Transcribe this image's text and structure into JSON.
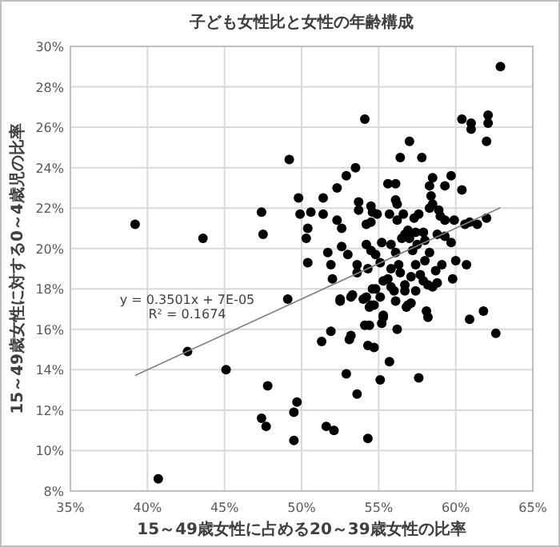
{
  "chart_data": {
    "type": "scatter",
    "title": "子ども女性比と女性の年齢構成",
    "xlabel": "15～49歳女性に占める20～39歳女性の比率",
    "ylabel": "15～49歳女性に対する0～4歳児の比率",
    "xlim": [
      35,
      65
    ],
    "ylim": [
      8,
      30
    ],
    "xticks": [
      {
        "value": 35,
        "label": "35%"
      },
      {
        "value": 40,
        "label": "40%"
      },
      {
        "value": 45,
        "label": "45%"
      },
      {
        "value": 50,
        "label": "50%"
      },
      {
        "value": 55,
        "label": "55%"
      },
      {
        "value": 60,
        "label": "60%"
      },
      {
        "value": 65,
        "label": "65%"
      }
    ],
    "yticks": [
      {
        "value": 8,
        "label": "8%"
      },
      {
        "value": 10,
        "label": "10%"
      },
      {
        "value": 12,
        "label": "12%"
      },
      {
        "value": 14,
        "label": "14%"
      },
      {
        "value": 16,
        "label": "16%"
      },
      {
        "value": 18,
        "label": "18%"
      },
      {
        "value": 20,
        "label": "20%"
      },
      {
        "value": 22,
        "label": "22%"
      },
      {
        "value": 24,
        "label": "24%"
      },
      {
        "value": 26,
        "label": "26%"
      },
      {
        "value": 28,
        "label": "28%"
      },
      {
        "value": 30,
        "label": "30%"
      }
    ],
    "grid": true,
    "series": [
      {
        "marker": "circle",
        "color": "#000000",
        "x": [
          49.2,
          39.2,
          43.6,
          47.4,
          47.5,
          49.8,
          49.9,
          50.6,
          50.4,
          50.3,
          50.4,
          49.1,
          42.6,
          45.1,
          47.8,
          49.7,
          49.5,
          47.4,
          47.7,
          49.5,
          40.7,
          51.3,
          52.5,
          53.2,
          54.0,
          54.5,
          51.9,
          53.2,
          53.1,
          54.1,
          54.4,
          54.3,
          54.7,
          55.2,
          55.3,
          56.2,
          55.7,
          52.9,
          55.1,
          57.6,
          53.6,
          51.6,
          52.1,
          54.3,
          60.9,
          61.8,
          62.6,
          58.1,
          58.2,
          56.9,
          57.1,
          62.9,
          54.1,
          60.4,
          61.0,
          61.0,
          62.1,
          62.1,
          62.0,
          57.0,
          56.4,
          57.8,
          53.5,
          52.9,
          52.3,
          51.4,
          55.6,
          56.1,
          53.7,
          53.7,
          54.5,
          56.1,
          56.2,
          58.3,
          58.5,
          58.4,
          59.3,
          59.7,
          60.4,
          51.4,
          52.3,
          54.6,
          54.9,
          54.2,
          54.5,
          55.7,
          56.2,
          56.6,
          57.3,
          57.6,
          58.3,
          58.5,
          58.9,
          59.0,
          59.3,
          59.9,
          60.6,
          60.9,
          61.4,
          62.0,
          52.6,
          51.7,
          51.9,
          52.0,
          52.6,
          53.0,
          53.6,
          53.6,
          54.3,
          54.2,
          54.5,
          55.2,
          54.8,
          55.1,
          55.8,
          56.1,
          56.3,
          56.5,
          56.7,
          56.9,
          57.0,
          57.2,
          57.5,
          57.4,
          57.9,
          58.0,
          58.3,
          58.0,
          57.4,
          57.7,
          57.1,
          56.4,
          55.8,
          55.6,
          55.8,
          55.3,
          54.8,
          54.6,
          55.1,
          56.0,
          56.7,
          56.7,
          57.4,
          57.9,
          58.2,
          58.5,
          58.8,
          59.1,
          59.3,
          58.8,
          59.7,
          60.0,
          60.7,
          59.8,
          58.7,
          54.2,
          54.7,
          54.4,
          55.3,
          52.5,
          53.3,
          56.1,
          56.8
        ],
        "values": [
          24.4,
          21.2,
          20.5,
          21.8,
          20.7,
          22.5,
          21.7,
          21.8,
          21.0,
          20.5,
          19.3,
          17.5,
          14.9,
          14.0,
          13.2,
          12.4,
          11.9,
          11.6,
          11.2,
          10.5,
          8.6,
          15.4,
          17.4,
          17.6,
          17.5,
          17.2,
          15.9,
          15.7,
          15.5,
          16.2,
          16.2,
          15.2,
          15.1,
          16.3,
          16.6,
          16.0,
          14.4,
          13.8,
          13.5,
          13.6,
          12.8,
          11.2,
          11.0,
          10.6,
          16.5,
          16.9,
          15.8,
          16.9,
          16.6,
          17.2,
          17.3,
          29.0,
          26.4,
          26.4,
          26.2,
          25.9,
          26.6,
          26.2,
          25.3,
          25.3,
          24.5,
          24.5,
          24.0,
          23.6,
          23.0,
          22.5,
          23.2,
          23.2,
          22.3,
          21.9,
          22.1,
          22.4,
          22.2,
          23.1,
          23.5,
          22.6,
          23.1,
          23.6,
          22.9,
          21.7,
          21.4,
          21.8,
          21.7,
          21.2,
          21.3,
          21.7,
          21.4,
          21.7,
          21.5,
          21.7,
          22.0,
          22.2,
          21.9,
          21.6,
          21.4,
          21.4,
          21.2,
          21.3,
          21.2,
          21.5,
          21.0,
          19.8,
          19.2,
          18.5,
          20.1,
          19.7,
          19.2,
          18.8,
          19.0,
          20.2,
          19.9,
          20.3,
          19.7,
          19.3,
          20.2,
          19.8,
          19.2,
          20.5,
          20.7,
          20.9,
          20.5,
          19.9,
          20.2,
          20.8,
          20.8,
          20.4,
          19.8,
          19.4,
          19.2,
          18.7,
          18.6,
          18.8,
          19.0,
          18.5,
          18.1,
          18.4,
          18.0,
          18.0,
          17.6,
          17.9,
          18.2,
          17.9,
          17.9,
          18.4,
          18.2,
          18.1,
          18.3,
          19.2,
          20.6,
          20.7,
          20.3,
          19.4,
          19.2,
          18.5,
          18.9,
          17.6,
          17.2,
          17.1,
          16.7,
          17.5,
          17.7,
          17.4,
          17.1
        ]
      },
      {
        "type": "line",
        "color": "#808080",
        "x": [
          39.2,
          62.9
        ],
        "values": [
          13.72,
          22.02
        ]
      }
    ],
    "annotations": [
      "y = 0.3501x + 7E-05",
      "R² = 0.1674"
    ]
  }
}
